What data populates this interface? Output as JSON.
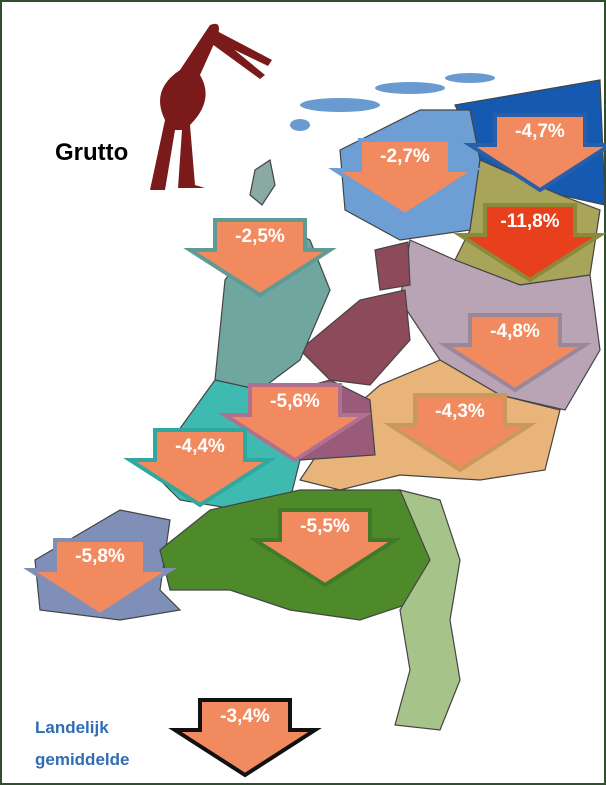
{
  "title": "Grutto",
  "regions": [
    {
      "label": "-4,7%"
    },
    {
      "label": "-2,7%"
    },
    {
      "label": "-11,8%"
    },
    {
      "label": "-2,5%"
    },
    {
      "label": "-4,8%"
    },
    {
      "label": "-5,6%"
    },
    {
      "label": "-4,3%"
    },
    {
      "label": "-4,4%"
    },
    {
      "label": "-5,5%"
    },
    {
      "label": "-5,8%"
    }
  ],
  "national": {
    "lines": [
      "Landelijk",
      "gemiddelde"
    ],
    "label": "-3,4%"
  }
}
